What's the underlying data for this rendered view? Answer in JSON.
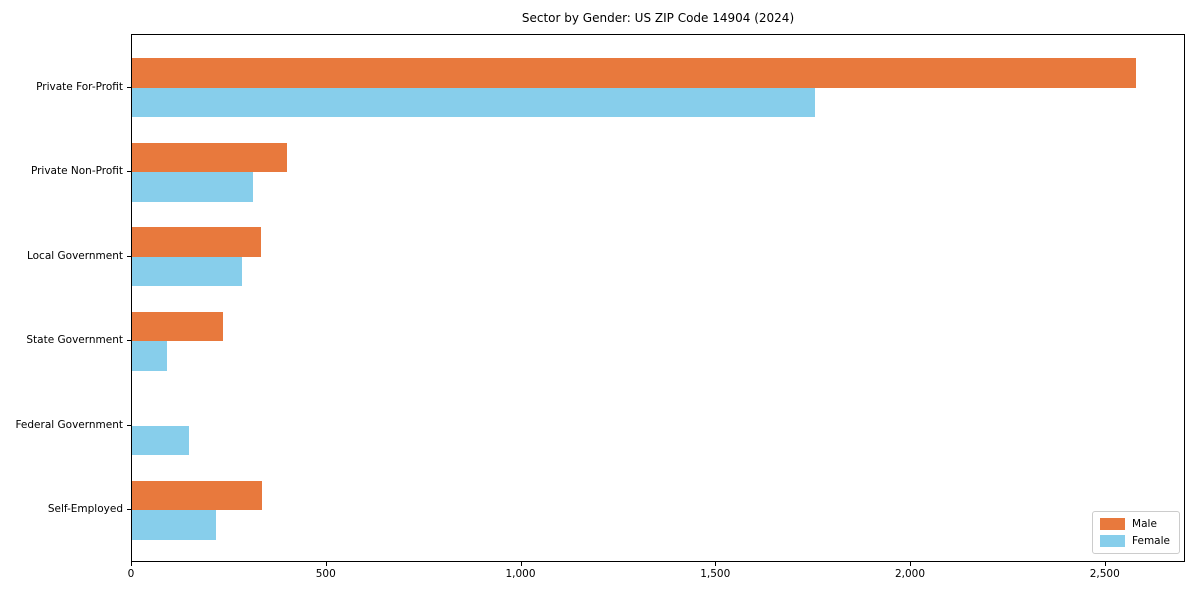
{
  "chart_data": {
    "type": "bar",
    "orientation": "horizontal",
    "title": "Sector by Gender: US ZIP Code 14904 (2024)",
    "categories": [
      "Private For-Profit",
      "Private Non-Profit",
      "Local Government",
      "State Government",
      "Federal Government",
      "Self-Employed"
    ],
    "series": [
      {
        "name": "Male",
        "color": "#E8793D",
        "values": [
          2577,
          398,
          331,
          234,
          0,
          335
        ]
      },
      {
        "name": "Female",
        "color": "#87CEEB",
        "values": [
          1753,
          310,
          282,
          90,
          146,
          216
        ]
      }
    ],
    "xlabel": "",
    "ylabel": "",
    "xlim": [
      0,
      2706
    ],
    "x_ticks": [
      0,
      500,
      1000,
      1500,
      2000,
      2500
    ],
    "x_tick_labels": [
      "0",
      "500",
      "1,000",
      "1,500",
      "2,000",
      "2,500"
    ],
    "grid": false,
    "legend_position": "lower right",
    "frame": "full-box"
  }
}
